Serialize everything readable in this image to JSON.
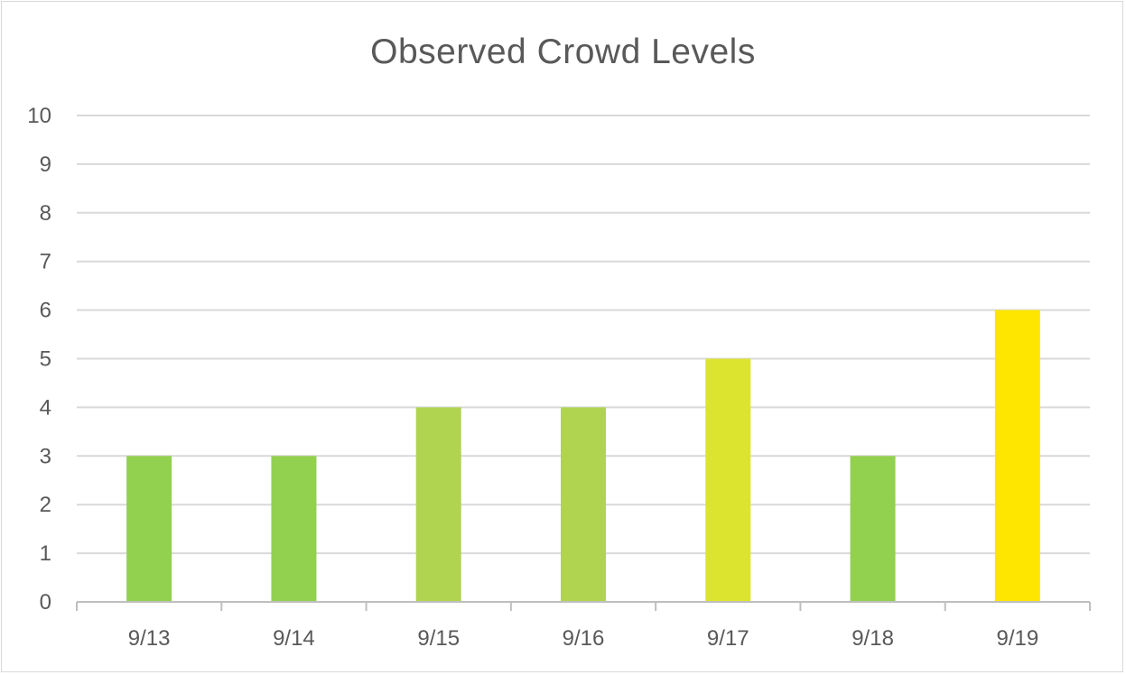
{
  "chart_data": {
    "type": "bar",
    "title": "Observed Crowd Levels",
    "xlabel": "",
    "ylabel": "",
    "categories": [
      "9/13",
      "9/14",
      "9/15",
      "9/16",
      "9/17",
      "9/18",
      "9/19"
    ],
    "values": [
      3,
      3,
      4,
      4,
      5,
      3,
      6
    ],
    "bar_colors": [
      "#92d050",
      "#92d050",
      "#b0d450",
      "#b0d450",
      "#dce430",
      "#92d050",
      "#ffe600"
    ],
    "ylim": [
      0,
      10
    ],
    "yticks": [
      "0",
      "1",
      "2",
      "3",
      "4",
      "5",
      "6",
      "7",
      "8",
      "9",
      "10"
    ],
    "grid": true,
    "legend": "none",
    "colors": {
      "gridline": "#d9d9d9",
      "axis": "#bfbfbf",
      "text": "#595959"
    }
  }
}
